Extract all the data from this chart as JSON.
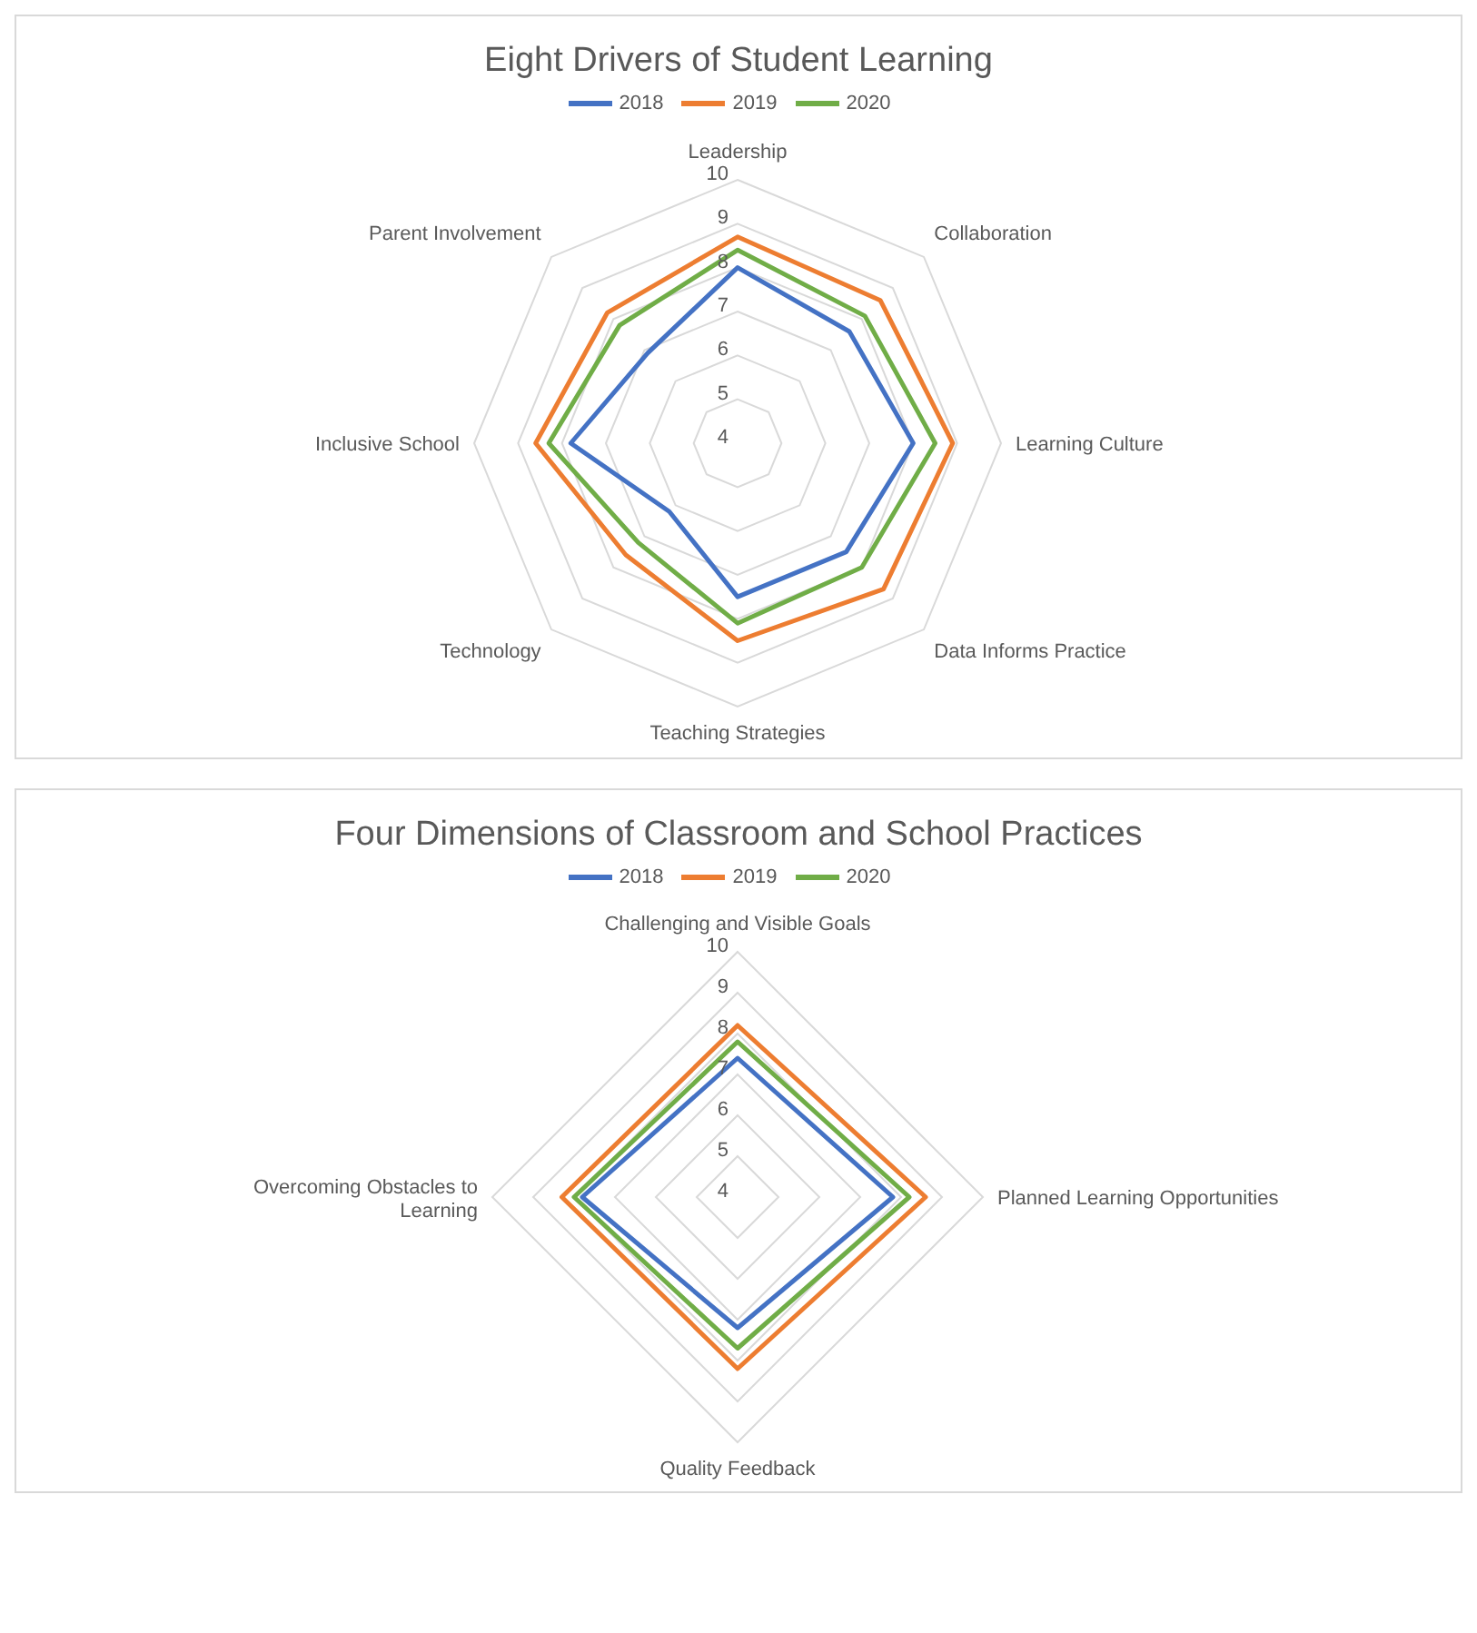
{
  "chart_data": [
    {
      "type": "radar",
      "title": "Eight Drivers of Student Learning",
      "categories": [
        "Leadership",
        "Collaboration",
        "Learning Culture",
        "Data Informs Practice",
        "Teaching Strategies",
        "Technology",
        "Inclusive School",
        "Parent Involvement"
      ],
      "series": [
        {
          "name": "2018",
          "color": "#4472c4",
          "values": [
            8.0,
            7.6,
            8.0,
            7.5,
            7.5,
            6.2,
            7.8,
            6.9
          ]
        },
        {
          "name": "2019",
          "color": "#ed7d31",
          "values": [
            8.7,
            8.6,
            8.9,
            8.7,
            8.5,
            7.6,
            8.6,
            8.2
          ]
        },
        {
          "name": "2020",
          "color": "#70ad47",
          "values": [
            8.4,
            8.1,
            8.5,
            8.0,
            8.1,
            7.2,
            8.3,
            7.8
          ]
        }
      ],
      "ylim": [
        4,
        10
      ],
      "yticks": [
        4,
        5,
        6,
        7,
        8,
        9,
        10
      ],
      "grid": true,
      "legend": "top"
    },
    {
      "type": "radar",
      "title": "Four Dimensions of Classroom and School Practices",
      "categories": [
        "Challenging and Visible Goals",
        "Planned Learning Opportunities",
        "Quality Feedback",
        "Overcoming Obstacles to Learning"
      ],
      "series": [
        {
          "name": "2018",
          "color": "#4472c4",
          "values": [
            7.4,
            7.8,
            7.2,
            7.8
          ]
        },
        {
          "name": "2019",
          "color": "#ed7d31",
          "values": [
            8.2,
            8.6,
            8.2,
            8.3
          ]
        },
        {
          "name": "2020",
          "color": "#70ad47",
          "values": [
            7.8,
            8.2,
            7.7,
            8.0
          ]
        }
      ],
      "ylim": [
        4,
        10
      ],
      "yticks": [
        4,
        5,
        6,
        7,
        8,
        9,
        10
      ],
      "grid": true,
      "legend": "top"
    }
  ]
}
